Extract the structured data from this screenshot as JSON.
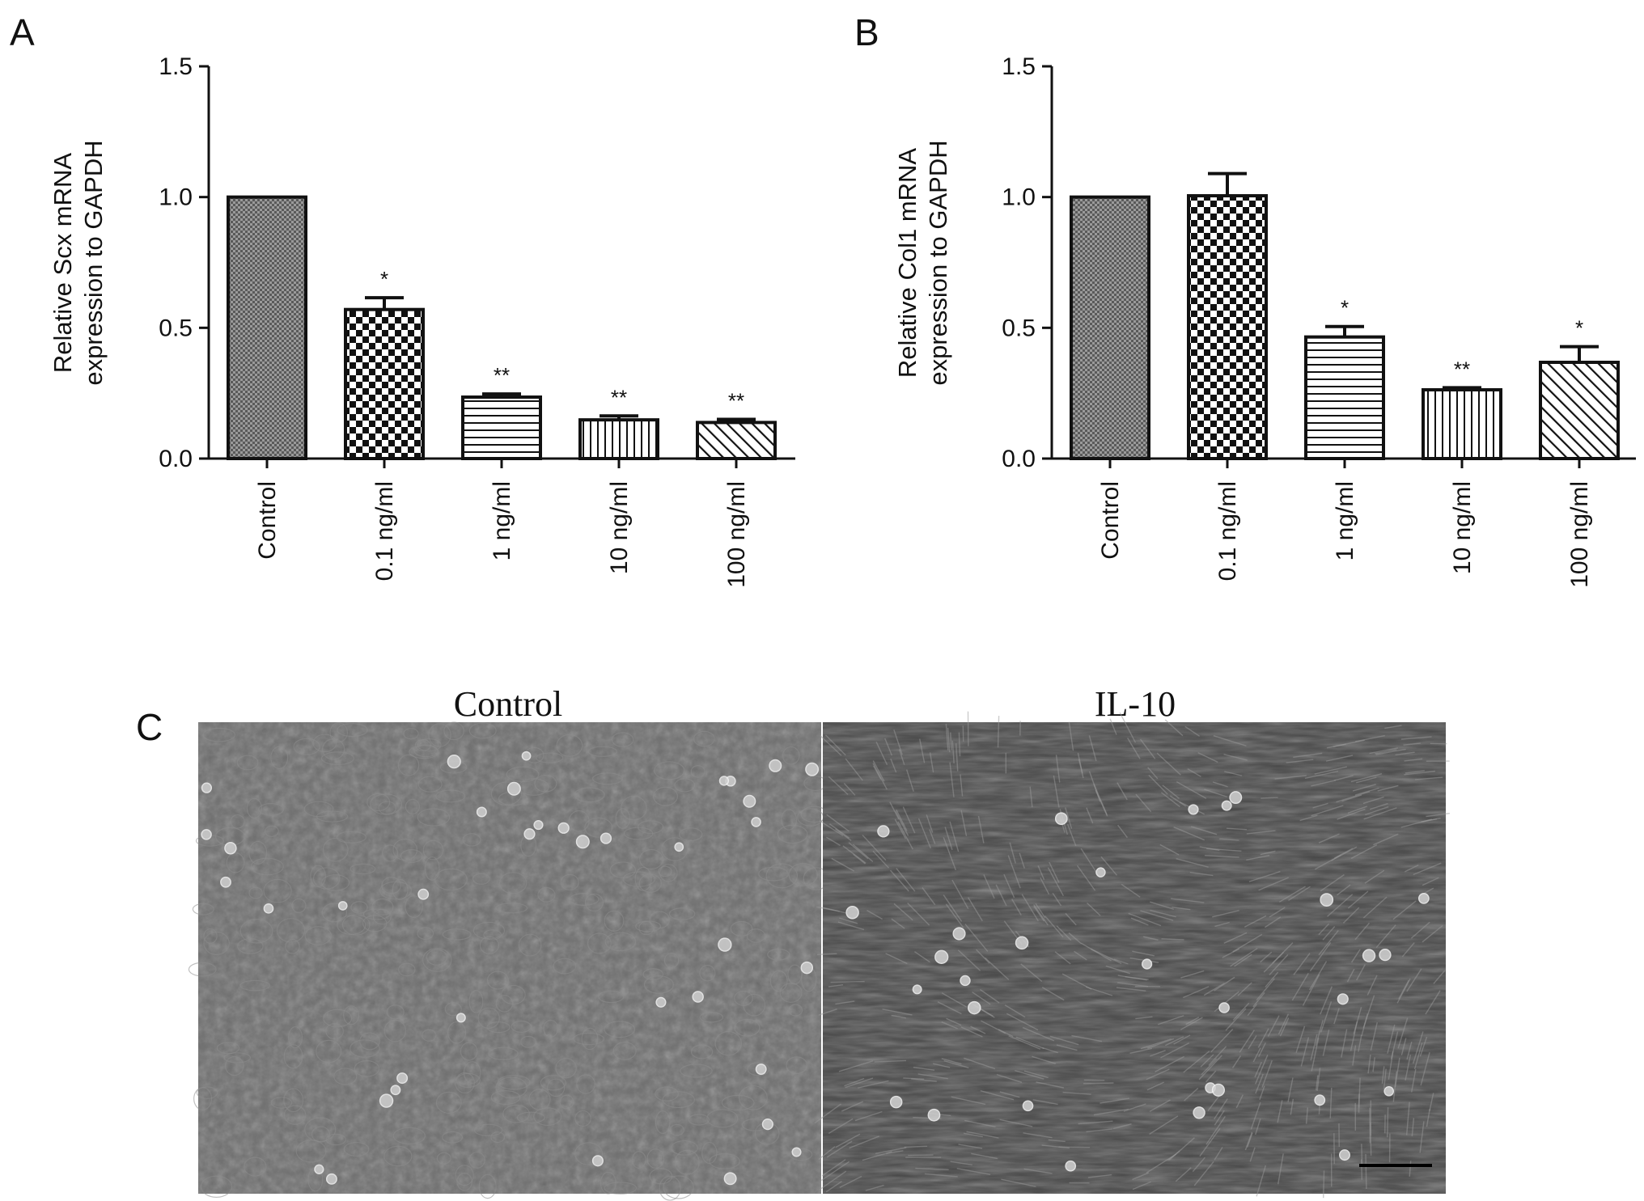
{
  "chart_data": [
    {
      "panel": "A",
      "type": "bar",
      "ylabel_line1": "Relative Scx mRNA",
      "ylabel_line2": "expression to GAPDH",
      "categories": [
        "Control",
        "0.1 ng/ml",
        "1 ng/ml",
        "10 ng/ml",
        "100 ng/ml"
      ],
      "values": [
        1.0,
        0.57,
        0.235,
        0.148,
        0.138
      ],
      "errors": [
        0,
        0.045,
        0.012,
        0.015,
        0.012
      ],
      "significance": [
        "",
        "*",
        "**",
        "**",
        "**"
      ],
      "patterns": [
        "dense",
        "checker",
        "hlines",
        "vlines",
        "diag"
      ],
      "ylim": [
        0,
        1.5
      ],
      "yticks": [
        "0.0",
        "0.5",
        "1.0",
        "1.5"
      ],
      "ytick_values": [
        0,
        0.5,
        1.0,
        1.5
      ],
      "grid": false
    },
    {
      "panel": "B",
      "type": "bar",
      "ylabel_line1": "Relative Col1 mRNA",
      "ylabel_line2": "expression to GAPDH",
      "categories": [
        "Control",
        "0.1 ng/ml",
        "1 ng/ml",
        "10 ng/ml",
        "100 ng/ml"
      ],
      "values": [
        1.0,
        1.005,
        0.465,
        0.263,
        0.368
      ],
      "errors": [
        0,
        0.085,
        0.04,
        0.008,
        0.06
      ],
      "significance": [
        "",
        "",
        "*",
        "**",
        "*"
      ],
      "patterns": [
        "dense",
        "checker",
        "hlines",
        "vlines",
        "diag"
      ],
      "ylim": [
        0,
        1.5
      ],
      "yticks": [
        "0.0",
        "0.5",
        "1.0",
        "1.5"
      ],
      "ytick_values": [
        0,
        0.5,
        1.0,
        1.5
      ],
      "grid": false
    }
  ],
  "panel_c": {
    "letter": "C",
    "images": [
      {
        "title": "Control",
        "tone": "#6e6e6e"
      },
      {
        "title": "IL-10",
        "tone": "#454545"
      }
    ]
  }
}
